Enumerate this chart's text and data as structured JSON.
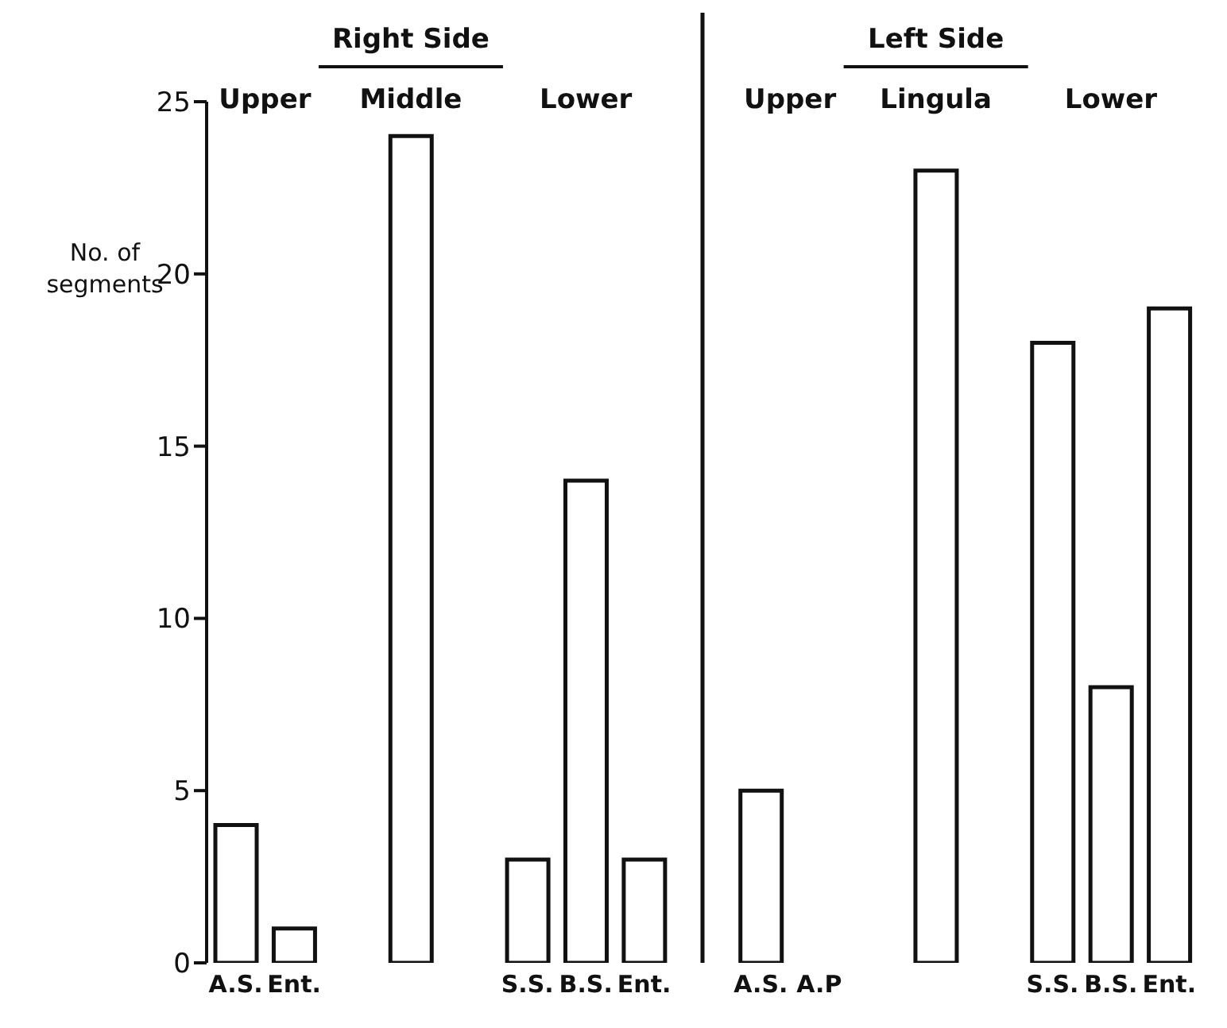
{
  "chart_data": {
    "type": "bar",
    "ylabel": "No. of segments",
    "categories": [
      "A.S.",
      "Ent.",
      null,
      null,
      null,
      "S.S.",
      "B.S.",
      "Ent.",
      null,
      "A.S.",
      "A.P",
      null,
      null,
      null,
      "S.S.",
      "B.S.",
      "Ent."
    ],
    "values": [
      4,
      1,
      null,
      24,
      null,
      3,
      14,
      3,
      null,
      5,
      0,
      null,
      23,
      null,
      18,
      8,
      19
    ],
    "color": "#ffffff",
    "ylim": [
      0,
      25
    ],
    "yticks": [
      0,
      5,
      10,
      15,
      20,
      25
    ],
    "annotations": [
      "Right Side",
      "Upper",
      "Middle",
      "Lower",
      "Left Side",
      "Upper",
      "Lingula",
      "Lower"
    ]
  }
}
